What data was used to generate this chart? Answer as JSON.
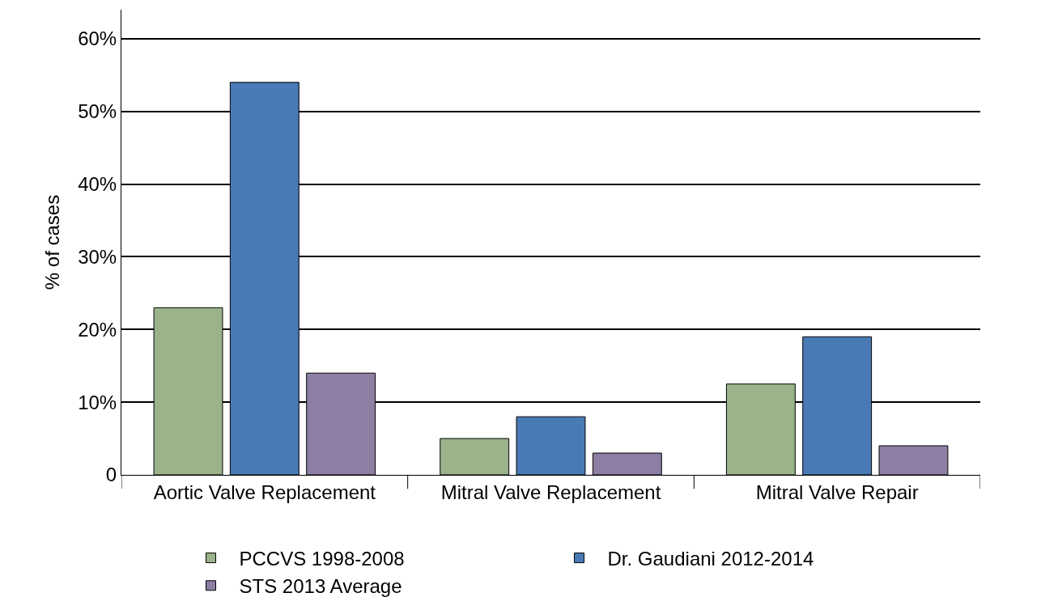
{
  "chart_data": {
    "type": "bar",
    "ylabel": "% of cases",
    "categories": [
      "Aortic Valve Replacement",
      "Mitral Valve Replacement",
      "Mitral Valve Repair"
    ],
    "series": [
      {
        "name": "PCCVS 1998-2008",
        "color": "#9ab38a",
        "values": [
          23,
          5,
          12.5
        ]
      },
      {
        "name": "Dr. Gaudiani 2012-2014",
        "color": "#4a7ab5",
        "values": [
          54,
          8,
          19
        ]
      },
      {
        "name": "STS 2013 Average",
        "color": "#8d7ea4",
        "values": [
          14,
          3,
          4
        ]
      }
    ],
    "ylim": [
      0,
      64
    ],
    "yticks": [
      {
        "value": 0,
        "label": "0"
      },
      {
        "value": 10,
        "label": "10%"
      },
      {
        "value": 20,
        "label": "20%"
      },
      {
        "value": 30,
        "label": "30%"
      },
      {
        "value": 40,
        "label": "40%"
      },
      {
        "value": 50,
        "label": "50%"
      },
      {
        "value": 60,
        "label": "60%"
      }
    ],
    "grid": "y",
    "legend": "bottom"
  }
}
